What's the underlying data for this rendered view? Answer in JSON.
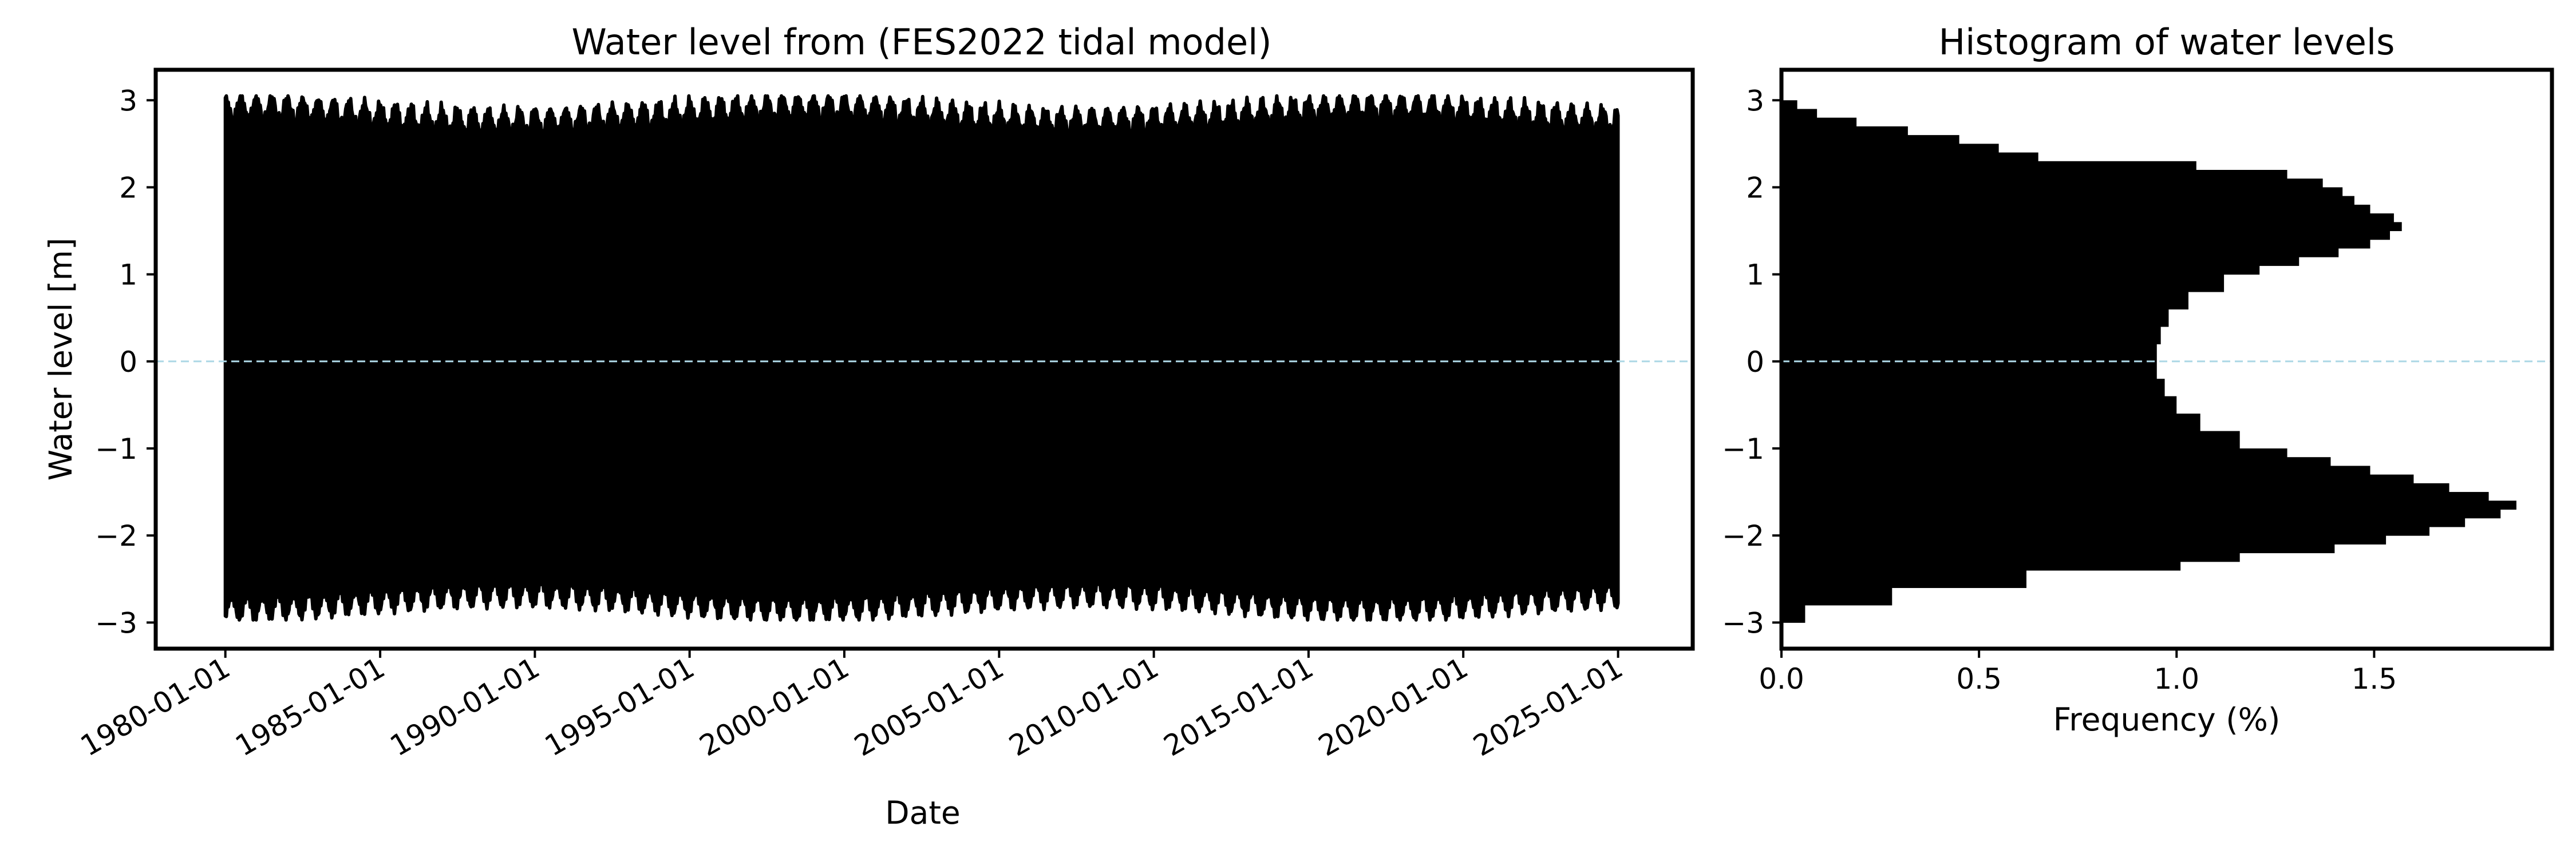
{
  "chart_data": [
    {
      "type": "line",
      "title": "Water level from (FES2022 tidal model)",
      "xlabel": "Date",
      "ylabel": "Water level [m]",
      "x_range": [
        "1980-01-01",
        "2024-12-31"
      ],
      "xlim": [
        "1977-10-01",
        "2027-06-01"
      ],
      "ylim": [
        -3.3,
        3.35
      ],
      "x_ticks": [
        "1980-01-01",
        "1985-01-01",
        "1990-01-01",
        "1995-01-01",
        "2000-01-01",
        "2005-01-01",
        "2010-01-01",
        "2015-01-01",
        "2020-01-01",
        "2025-01-01"
      ],
      "y_ticks": [
        -3,
        -2,
        -1,
        0,
        1,
        2,
        3
      ],
      "series": [
        {
          "color": "#000000",
          "envelope_upper_range": [
            2.6,
            3.05
          ],
          "envelope_lower_range": [
            -2.97,
            -2.5
          ]
        }
      ],
      "reference_line": {
        "y": 0,
        "color": "#add8e6",
        "style": "dashed"
      },
      "grid": false
    },
    {
      "type": "bar",
      "orientation": "horizontal",
      "title": "Histogram of water levels",
      "xlabel": "Frequency (%)",
      "ylabel": "",
      "xlim": [
        0,
        1.95
      ],
      "ylim": [
        -3.3,
        3.35
      ],
      "x_ticks": [
        "0.0",
        "0.5",
        "1.0",
        "1.5"
      ],
      "y_ticks": [
        -3,
        -2,
        -1,
        0,
        1,
        2,
        3
      ],
      "bins": [
        {
          "y0": -3.0,
          "y1": -2.8,
          "value": 0.06
        },
        {
          "y0": -2.8,
          "y1": -2.6,
          "value": 0.28
        },
        {
          "y0": -2.6,
          "y1": -2.4,
          "value": 0.62
        },
        {
          "y0": -2.4,
          "y1": -2.3,
          "value": 1.01
        },
        {
          "y0": -2.3,
          "y1": -2.2,
          "value": 1.16
        },
        {
          "y0": -2.2,
          "y1": -2.1,
          "value": 1.4
        },
        {
          "y0": -2.1,
          "y1": -2.0,
          "value": 1.53
        },
        {
          "y0": -2.0,
          "y1": -1.9,
          "value": 1.64
        },
        {
          "y0": -1.9,
          "y1": -1.8,
          "value": 1.73
        },
        {
          "y0": -1.8,
          "y1": -1.7,
          "value": 1.82
        },
        {
          "y0": -1.7,
          "y1": -1.6,
          "value": 1.86
        },
        {
          "y0": -1.6,
          "y1": -1.5,
          "value": 1.79
        },
        {
          "y0": -1.5,
          "y1": -1.4,
          "value": 1.69
        },
        {
          "y0": -1.4,
          "y1": -1.3,
          "value": 1.6
        },
        {
          "y0": -1.3,
          "y1": -1.2,
          "value": 1.49
        },
        {
          "y0": -1.2,
          "y1": -1.1,
          "value": 1.39
        },
        {
          "y0": -1.1,
          "y1": -1.0,
          "value": 1.28
        },
        {
          "y0": -1.0,
          "y1": -0.8,
          "value": 1.16
        },
        {
          "y0": -0.8,
          "y1": -0.6,
          "value": 1.06
        },
        {
          "y0": -0.6,
          "y1": -0.4,
          "value": 1.0
        },
        {
          "y0": -0.4,
          "y1": -0.2,
          "value": 0.97
        },
        {
          "y0": -0.2,
          "y1": 0.0,
          "value": 0.95
        },
        {
          "y0": 0.0,
          "y1": 0.2,
          "value": 0.95
        },
        {
          "y0": 0.2,
          "y1": 0.4,
          "value": 0.96
        },
        {
          "y0": 0.4,
          "y1": 0.6,
          "value": 0.98
        },
        {
          "y0": 0.6,
          "y1": 0.8,
          "value": 1.03
        },
        {
          "y0": 0.8,
          "y1": 1.0,
          "value": 1.12
        },
        {
          "y0": 1.0,
          "y1": 1.1,
          "value": 1.21
        },
        {
          "y0": 1.1,
          "y1": 1.2,
          "value": 1.31
        },
        {
          "y0": 1.2,
          "y1": 1.3,
          "value": 1.41
        },
        {
          "y0": 1.3,
          "y1": 1.4,
          "value": 1.49
        },
        {
          "y0": 1.4,
          "y1": 1.5,
          "value": 1.54
        },
        {
          "y0": 1.5,
          "y1": 1.6,
          "value": 1.57
        },
        {
          "y0": 1.6,
          "y1": 1.7,
          "value": 1.55
        },
        {
          "y0": 1.7,
          "y1": 1.8,
          "value": 1.49
        },
        {
          "y0": 1.8,
          "y1": 1.9,
          "value": 1.45
        },
        {
          "y0": 1.9,
          "y1": 2.0,
          "value": 1.42
        },
        {
          "y0": 2.0,
          "y1": 2.1,
          "value": 1.37
        },
        {
          "y0": 2.1,
          "y1": 2.2,
          "value": 1.28
        },
        {
          "y0": 2.2,
          "y1": 2.3,
          "value": 1.05
        },
        {
          "y0": 2.3,
          "y1": 2.4,
          "value": 0.65
        },
        {
          "y0": 2.4,
          "y1": 2.5,
          "value": 0.55
        },
        {
          "y0": 2.5,
          "y1": 2.6,
          "value": 0.45
        },
        {
          "y0": 2.6,
          "y1": 2.7,
          "value": 0.32
        },
        {
          "y0": 2.7,
          "y1": 2.8,
          "value": 0.19
        },
        {
          "y0": 2.8,
          "y1": 2.9,
          "value": 0.09
        },
        {
          "y0": 2.9,
          "y1": 3.0,
          "value": 0.04
        }
      ],
      "color": "#000000",
      "reference_line": {
        "y": 0,
        "color": "#add8e6",
        "style": "dashed"
      },
      "grid": false
    }
  ]
}
